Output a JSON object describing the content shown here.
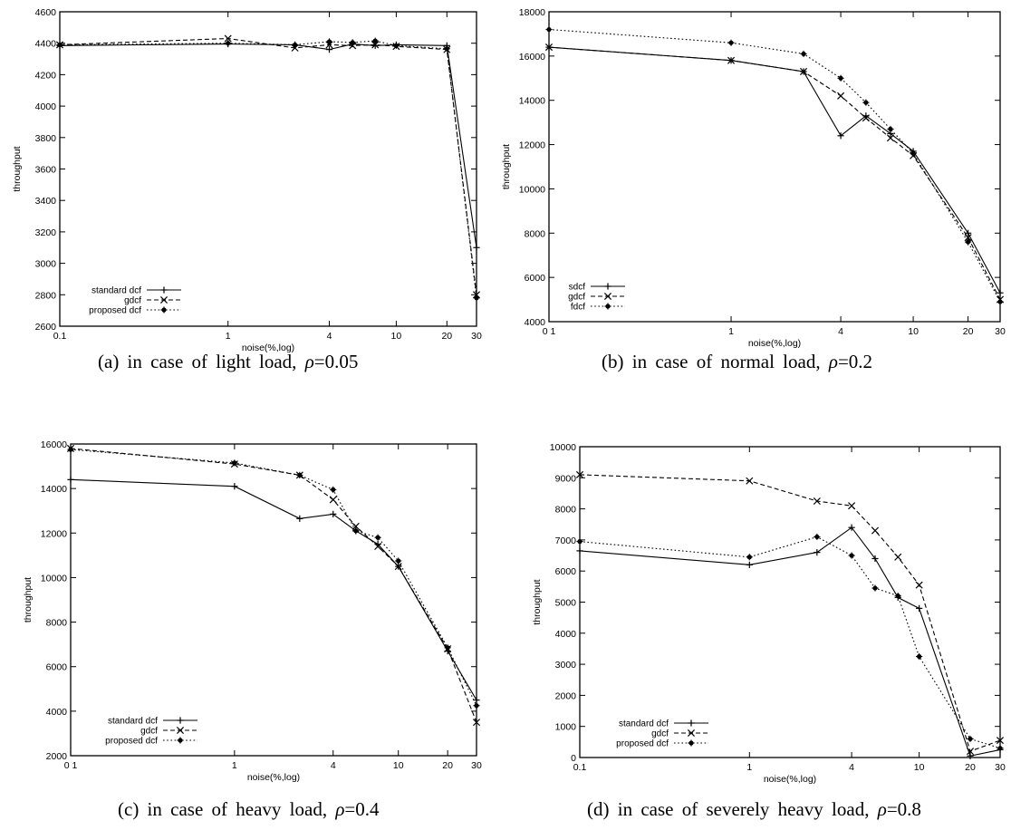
{
  "chart_data": [
    {
      "type": "line",
      "id": "a",
      "ylabel": "throughput",
      "xlabel": "noise(%,log)",
      "x_scale": "log",
      "xlim": [
        0.1,
        30
      ],
      "ylim": [
        2600,
        4600
      ],
      "x_ticks": [
        0.1,
        1,
        4,
        10,
        20,
        30
      ],
      "x_tick_labels": [
        "0.1",
        "1",
        "4",
        "10",
        "20",
        "30"
      ],
      "y_ticks": [
        2600,
        2800,
        3000,
        3200,
        3400,
        3600,
        3800,
        4000,
        4200,
        4400,
        4600
      ],
      "legend_position": "bottom-left",
      "caption": {
        "prefix": "(a)  in  case  of  light  load,",
        "rho": "ρ",
        "value": "=0.05"
      },
      "series": [
        {
          "name": "standard dcf",
          "style": "solid",
          "marker": "+",
          "x": [
            0.1,
            1,
            2.5,
            4,
            5.5,
            7.5,
            10,
            20,
            30
          ],
          "y": [
            4385,
            4395,
            4390,
            4360,
            4395,
            4385,
            4390,
            4385,
            3100
          ]
        },
        {
          "name": "gdcf",
          "style": "dash",
          "marker": "x",
          "x": [
            0.1,
            1,
            2.5,
            4,
            5.5,
            7.5,
            10,
            20,
            30
          ],
          "y": [
            4390,
            4430,
            4370,
            4390,
            4385,
            4390,
            4380,
            4360,
            2800
          ]
        },
        {
          "name": "proposed dcf",
          "style": "dot",
          "marker": "*",
          "x": [
            0.1,
            1,
            2.5,
            4,
            5.5,
            7.5,
            10,
            20,
            30
          ],
          "y": [
            4390,
            4400,
            4390,
            4410,
            4405,
            4415,
            4385,
            4365,
            2780
          ]
        }
      ]
    },
    {
      "type": "line",
      "id": "b",
      "ylabel": "throughput",
      "xlabel": "noise(%,log)",
      "x_scale": "log",
      "xlim": [
        0.1,
        30
      ],
      "ylim": [
        4000,
        18000
      ],
      "x_ticks": [
        0.1,
        1,
        4,
        10,
        20,
        30
      ],
      "x_tick_labels": [
        "0 1",
        "1",
        "4",
        "10",
        "20",
        "30"
      ],
      "y_ticks": [
        4000,
        6000,
        8000,
        10000,
        12000,
        14000,
        16000,
        18000
      ],
      "legend_position": "bottom-left",
      "caption": {
        "prefix": "(b)  in  case  of  normal  load,",
        "rho": "ρ",
        "value": "=0.2"
      },
      "series": [
        {
          "name": "sdcf",
          "style": "solid",
          "marker": "+",
          "x": [
            0.1,
            1,
            2.5,
            4,
            5.5,
            7.5,
            10,
            20,
            30
          ],
          "y": [
            16400,
            15800,
            15300,
            12400,
            13300,
            12500,
            11700,
            8000,
            5300
          ]
        },
        {
          "name": "gdcf",
          "style": "dash",
          "marker": "x",
          "x": [
            0.1,
            1,
            2.5,
            4,
            5.5,
            7.5,
            10,
            20,
            30
          ],
          "y": [
            16400,
            15800,
            15300,
            14200,
            13200,
            12300,
            11500,
            7800,
            5000
          ]
        },
        {
          "name": "fdcf",
          "style": "dot",
          "marker": "*",
          "x": [
            0.1,
            1,
            2.5,
            4,
            5.5,
            7.5,
            10,
            20,
            30
          ],
          "y": [
            17200,
            16600,
            16100,
            15000,
            13900,
            12700,
            11600,
            7600,
            4900
          ]
        }
      ]
    },
    {
      "type": "line",
      "id": "c",
      "ylabel": "throughput",
      "xlabel": "noise(%,log)",
      "x_scale": "log",
      "xlim": [
        0.1,
        30
      ],
      "ylim": [
        2000,
        16000
      ],
      "x_ticks": [
        0.1,
        1,
        4,
        10,
        20,
        30
      ],
      "x_tick_labels": [
        "0 1",
        "1",
        "4",
        "10",
        "20",
        "30"
      ],
      "y_ticks": [
        2000,
        4000,
        6000,
        8000,
        10000,
        12000,
        14000,
        16000
      ],
      "legend_position": "bottom-left",
      "caption": {
        "prefix": "(c)  in  case  of  heavy  load,",
        "rho": "ρ",
        "value": "=0.4"
      },
      "series": [
        {
          "name": "standard dcf",
          "style": "solid",
          "marker": "+",
          "x": [
            0.1,
            1,
            2.5,
            4,
            5.5,
            7.5,
            10,
            20,
            30
          ],
          "y": [
            14400,
            14100,
            12650,
            12850,
            12100,
            11500,
            10500,
            6700,
            4500
          ]
        },
        {
          "name": "gdcf",
          "style": "dash",
          "marker": "x",
          "x": [
            0.1,
            1,
            2.5,
            4,
            5.5,
            7.5,
            10,
            20,
            30
          ],
          "y": [
            15800,
            15100,
            14600,
            13500,
            12300,
            11400,
            10500,
            6800,
            3500
          ]
        },
        {
          "name": "proposed dcf",
          "style": "dot",
          "marker": "*",
          "x": [
            0.1,
            1,
            2.5,
            4,
            5.5,
            7.5,
            10,
            20,
            30
          ],
          "y": [
            15750,
            15150,
            14600,
            13950,
            12100,
            11800,
            10750,
            6850,
            4250
          ]
        }
      ]
    },
    {
      "type": "line",
      "id": "d",
      "ylabel": "throughput",
      "xlabel": "noise(%,log)",
      "x_scale": "log",
      "xlim": [
        0.1,
        30
      ],
      "ylim": [
        0,
        10000
      ],
      "x_ticks": [
        0.1,
        1,
        4,
        10,
        20,
        30
      ],
      "x_tick_labels": [
        "0.1",
        "1",
        "4",
        "10",
        "20",
        "30"
      ],
      "y_ticks": [
        0,
        1000,
        2000,
        3000,
        4000,
        5000,
        6000,
        7000,
        8000,
        9000,
        10000
      ],
      "legend_position": "bottom-left",
      "caption": {
        "prefix": "(d)  in  case  of  severely  heavy  load,",
        "rho": "ρ",
        "value": "=0.8"
      },
      "series": [
        {
          "name": "standard dcf",
          "style": "solid",
          "marker": "+",
          "x": [
            0.1,
            1,
            2.5,
            4,
            5.5,
            7.5,
            10,
            20,
            30
          ],
          "y": [
            6650,
            6200,
            6600,
            7400,
            6400,
            5150,
            4800,
            50,
            250
          ]
        },
        {
          "name": "gdcf",
          "style": "dash",
          "marker": "x",
          "x": [
            0.1,
            1,
            2.5,
            4,
            5.5,
            7.5,
            10,
            20,
            30
          ],
          "y": [
            9100,
            8900,
            8250,
            8100,
            7300,
            6450,
            5550,
            200,
            550
          ]
        },
        {
          "name": "proposed dcf",
          "style": "dot",
          "marker": "*",
          "x": [
            0.1,
            1,
            2.5,
            4,
            5.5,
            7.5,
            10,
            20,
            30
          ],
          "y": [
            6950,
            6450,
            7100,
            6500,
            5450,
            5200,
            3250,
            600,
            300
          ]
        }
      ]
    }
  ]
}
